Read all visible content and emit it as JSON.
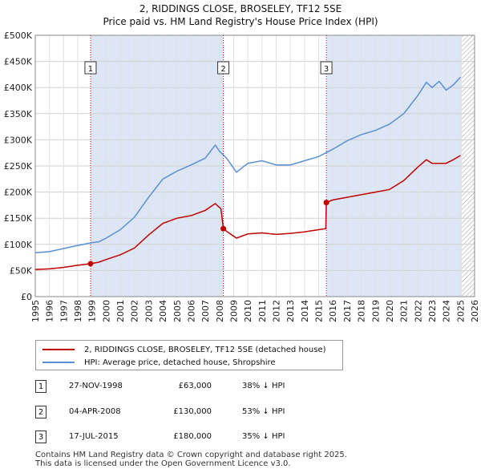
{
  "title": "2, RIDDINGS CLOSE, BROSELEY, TF12 5SE",
  "subtitle": "Price paid vs. HM Land Registry's House Price Index (HPI)",
  "colors": {
    "property": "#c00000",
    "hpi": "#5b8fd4",
    "shade": "#dde6f5"
  },
  "chart_data": {
    "type": "line",
    "x_range": [
      1995,
      2026
    ],
    "ylim": [
      0,
      500000
    ],
    "y_ticks": [
      0,
      50000,
      100000,
      150000,
      200000,
      250000,
      300000,
      350000,
      400000,
      450000,
      500000
    ],
    "y_tick_labels": [
      "£0",
      "£50K",
      "£100K",
      "£150K",
      "£200K",
      "£250K",
      "£300K",
      "£350K",
      "£400K",
      "£450K",
      "£500K"
    ],
    "x_ticks": [
      1995,
      1996,
      1997,
      1998,
      1999,
      2000,
      2001,
      2002,
      2003,
      2004,
      2005,
      2006,
      2007,
      2008,
      2009,
      2010,
      2011,
      2012,
      2013,
      2014,
      2015,
      2016,
      2017,
      2018,
      2019,
      2020,
      2021,
      2022,
      2023,
      2024,
      2025,
      2026
    ],
    "x_tick_labels": [
      "1995",
      "1996",
      "1997",
      "1998",
      "1999",
      "2000",
      "2001",
      "2002",
      "2003",
      "2004",
      "2005",
      "2006",
      "2007",
      "2008",
      "2009",
      "2010",
      "2011",
      "2012",
      "2013",
      "2014",
      "2015",
      "2016",
      "2017",
      "2018",
      "2019",
      "2020",
      "2021",
      "2022",
      "2023",
      "2024",
      "2025",
      "2026"
    ],
    "forecast_from": 2025.1,
    "series": [
      {
        "name": "2, RIDDINGS CLOSE, BROSELEY, TF12 5SE (detached house)",
        "x": [
          1995.0,
          1996.0,
          1997.0,
          1998.0,
          1998.9,
          1999.5,
          2000.0,
          2001.0,
          2002.0,
          2003.0,
          2004.0,
          2005.0,
          2006.0,
          2007.0,
          2007.7,
          2008.1,
          2008.27,
          2008.6,
          2009.2,
          2010.0,
          2011.0,
          2012.0,
          2013.0,
          2014.0,
          2015.0,
          2015.5,
          2015.54,
          2016.0,
          2017.0,
          2018.0,
          2019.0,
          2020.0,
          2021.0,
          2022.0,
          2022.6,
          2023.0,
          2024.0,
          2024.5,
          2025.0
        ],
        "values": [
          52000,
          53000,
          56000,
          60000,
          63000,
          66000,
          71000,
          80000,
          93000,
          118000,
          140000,
          150000,
          155000,
          165000,
          178000,
          168000,
          130000,
          123000,
          112000,
          120000,
          122000,
          119000,
          121000,
          124000,
          128000,
          130000,
          180000,
          185000,
          190000,
          195000,
          200000,
          205000,
          222000,
          248000,
          262000,
          255000,
          255000,
          262000,
          270000
        ]
      },
      {
        "name": "HPI: Average price, detached house, Shropshire",
        "x": [
          1995.0,
          1996.0,
          1997.0,
          1998.0,
          1999.0,
          1999.5,
          2000.0,
          2001.0,
          2002.0,
          2003.0,
          2004.0,
          2005.0,
          2006.0,
          2007.0,
          2007.7,
          2008.0,
          2008.5,
          2009.2,
          2010.0,
          2011.0,
          2012.0,
          2013.0,
          2014.0,
          2015.0,
          2016.0,
          2017.0,
          2018.0,
          2019.0,
          2020.0,
          2021.0,
          2022.0,
          2022.6,
          2023.0,
          2023.5,
          2024.0,
          2024.5,
          2025.0
        ],
        "values": [
          84000,
          86000,
          92000,
          98000,
          103000,
          105000,
          112000,
          128000,
          152000,
          190000,
          225000,
          240000,
          252000,
          265000,
          290000,
          278000,
          265000,
          238000,
          255000,
          260000,
          252000,
          252000,
          260000,
          268000,
          282000,
          298000,
          310000,
          318000,
          330000,
          350000,
          385000,
          410000,
          400000,
          412000,
          395000,
          405000,
          420000
        ]
      }
    ],
    "sale_points": [
      {
        "label": "1",
        "x": 1998.9,
        "value": 63000
      },
      {
        "label": "2",
        "x": 2008.27,
        "value": 130000
      },
      {
        "label": "3",
        "x": 2015.54,
        "value": 180000
      }
    ]
  },
  "legend": {
    "property_label": "2, RIDDINGS CLOSE, BROSELEY, TF12 5SE (detached house)",
    "hpi_label": "HPI: Average price, detached house, Shropshire"
  },
  "sales": [
    {
      "num": "1",
      "date": "27-NOV-1998",
      "price": "£63,000",
      "hpi": "38% ↓ HPI"
    },
    {
      "num": "2",
      "date": "04-APR-2008",
      "price": "£130,000",
      "hpi": "53% ↓ HPI"
    },
    {
      "num": "3",
      "date": "17-JUL-2015",
      "price": "£180,000",
      "hpi": "35% ↓ HPI"
    }
  ],
  "footer": {
    "line1": "Contains HM Land Registry data © Crown copyright and database right 2025.",
    "line2": "This data is licensed under the Open Government Licence v3.0."
  }
}
